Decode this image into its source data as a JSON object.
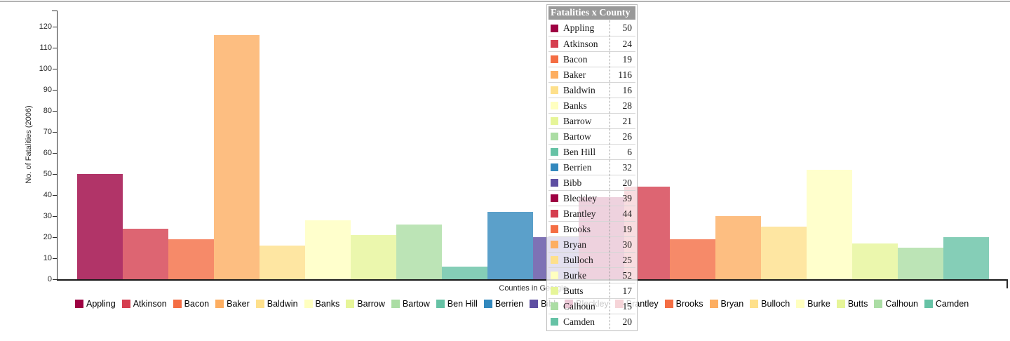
{
  "page": {
    "top_border_color": "#b3b3b3"
  },
  "chart_data": {
    "type": "bar",
    "xlabel": "Counties in Georgia",
    "ylabel": "No. of Fatalities (2006)",
    "categories": [
      "Appling",
      "Atkinson",
      "Bacon",
      "Baker",
      "Baldwin",
      "Banks",
      "Barrow",
      "Bartow",
      "Ben Hill",
      "Berrien",
      "Bibb",
      "Bleckley",
      "Brantley",
      "Brooks",
      "Bryan",
      "Bulloch",
      "Burke",
      "Butts",
      "Calhoun",
      "Camden"
    ],
    "values": [
      50,
      24,
      19,
      116,
      16,
      28,
      21,
      26,
      6,
      32,
      20,
      39,
      44,
      19,
      30,
      25,
      52,
      17,
      15,
      20
    ],
    "palette": [
      "#9e0142",
      "#d53e4f",
      "#f46d43",
      "#fdae61",
      "#fee08b",
      "#ffffbf",
      "#e6f598",
      "#abdda4",
      "#66c2a5",
      "#3288bd",
      "#5e4fa2"
    ],
    "bar_opacity": 0.8,
    "ylim": [
      0,
      120
    ],
    "ytick_step": 10,
    "grid": false,
    "legend_position": "bottom",
    "tooltip": {
      "title": "Fatalities x County",
      "header_bg": "#999999",
      "header_text_color": "#ffffff"
    }
  }
}
